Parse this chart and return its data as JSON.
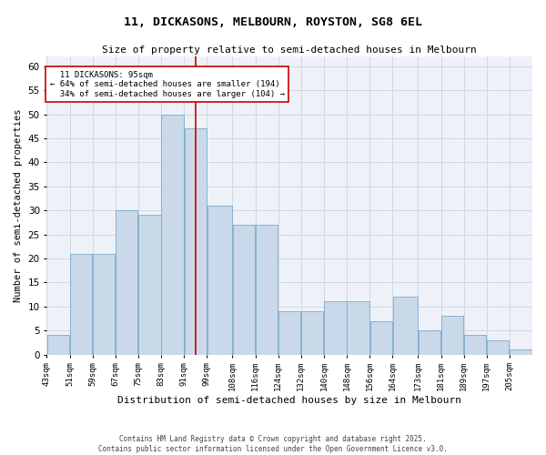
{
  "title_line1": "11, DICKASONS, MELBOURN, ROYSTON, SG8 6EL",
  "title_line2": "Size of property relative to semi-detached houses in Melbourn",
  "xlabel": "Distribution of semi-detached houses by size in Melbourn",
  "ylabel": "Number of semi-detached properties",
  "categories": [
    "43sqm",
    "51sqm",
    "59sqm",
    "67sqm",
    "75sqm",
    "83sqm",
    "91sqm",
    "99sqm",
    "108sqm",
    "116sqm",
    "124sqm",
    "132sqm",
    "140sqm",
    "148sqm",
    "156sqm",
    "164sqm",
    "173sqm",
    "181sqm",
    "189sqm",
    "197sqm",
    "205sqm"
  ],
  "bin_edges": [
    43,
    51,
    59,
    67,
    75,
    83,
    91,
    99,
    108,
    116,
    124,
    132,
    140,
    148,
    156,
    164,
    173,
    181,
    189,
    197,
    205,
    213
  ],
  "heights": [
    4,
    21,
    21,
    30,
    29,
    50,
    47,
    31,
    27,
    27,
    9,
    9,
    11,
    11,
    7,
    12,
    5,
    8,
    4,
    3,
    1
  ],
  "property_size": 95,
  "property_name": "11 DICKASONS: 95sqm",
  "pct_smaller": 64,
  "n_smaller": 194,
  "pct_larger": 34,
  "n_larger": 104,
  "bar_color": "#c9d9ea",
  "bar_edge_color": "#7aaac8",
  "vline_color": "#cc0000",
  "box_edge_color": "#cc0000",
  "grid_color": "#cdd8e8",
  "background_color": "#eef2f8",
  "ylim": [
    0,
    62
  ],
  "yticks": [
    0,
    5,
    10,
    15,
    20,
    25,
    30,
    35,
    40,
    45,
    50,
    55,
    60
  ],
  "footer_line1": "Contains HM Land Registry data © Crown copyright and database right 2025.",
  "footer_line2": "Contains public sector information licensed under the Open Government Licence v3.0."
}
